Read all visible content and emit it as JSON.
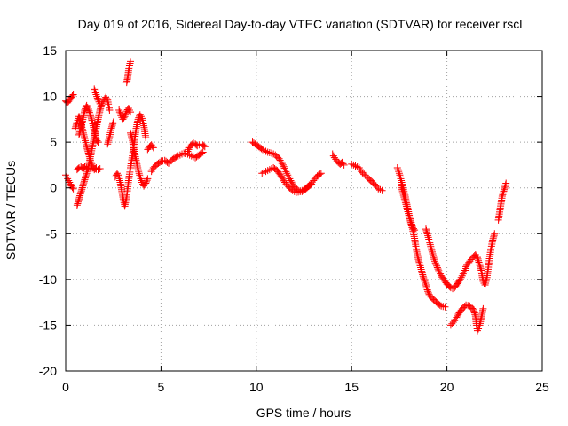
{
  "chart_data": {
    "type": "scatter",
    "title": "Day 019 of 2016, Sidereal Day-to-day VTEC variation (SDTVAR) for receiver rscl",
    "xlabel": "GPS time / hours",
    "ylabel": "SDTVAR / TECUs",
    "xlim": [
      0,
      25
    ],
    "ylim": [
      -20,
      15
    ],
    "x_ticks": [
      0,
      5,
      10,
      15,
      20,
      25
    ],
    "y_ticks": [
      -20,
      -15,
      -10,
      -5,
      0,
      5,
      10,
      15
    ],
    "x_tick_labels": [
      "0",
      "5",
      "10",
      "15",
      "20",
      "25"
    ],
    "y_tick_labels": [
      "-20",
      "-15",
      "-10",
      "-5",
      "0",
      "5",
      "10",
      "15"
    ],
    "grid": true,
    "marker": "plus",
    "series": [
      {
        "name": "SDTVAR",
        "color": "#ff0000",
        "tracks": [
          [
            [
              0.0,
              9.5
            ],
            [
              0.1,
              9.3
            ],
            [
              0.2,
              9.6
            ],
            [
              0.3,
              9.9
            ],
            [
              0.4,
              10.2
            ]
          ],
          [
            [
              0.0,
              1.4
            ],
            [
              0.1,
              1.0
            ],
            [
              0.2,
              0.6
            ],
            [
              0.3,
              0.2
            ],
            [
              0.4,
              -0.1
            ]
          ],
          [
            [
              0.5,
              6.5
            ],
            [
              0.6,
              7.2
            ],
            [
              0.7,
              7.8
            ],
            [
              0.8,
              7.0
            ],
            [
              0.9,
              6.2
            ],
            [
              1.0,
              5.4
            ],
            [
              1.1,
              4.5
            ],
            [
              1.2,
              3.8
            ],
            [
              1.3,
              3.0
            ],
            [
              1.4,
              2.4
            ],
            [
              1.5,
              2.0
            ],
            [
              1.6,
              2.2
            ]
          ],
          [
            [
              0.6,
              -1.9
            ],
            [
              0.7,
              -1.2
            ],
            [
              0.8,
              -0.5
            ],
            [
              0.9,
              0.2
            ],
            [
              1.0,
              0.9
            ],
            [
              1.1,
              1.6
            ],
            [
              1.2,
              2.4
            ],
            [
              1.3,
              3.4
            ],
            [
              1.4,
              4.5
            ],
            [
              1.5,
              5.5
            ],
            [
              1.6,
              6.5
            ],
            [
              1.7,
              7.5
            ],
            [
              1.8,
              8.5
            ],
            [
              1.9,
              9.2
            ],
            [
              2.0,
              9.6
            ],
            [
              2.1,
              9.9
            ],
            [
              2.2,
              9.6
            ],
            [
              2.3,
              8.5
            ]
          ],
          [
            [
              0.6,
              2.0
            ],
            [
              0.7,
              2.2
            ],
            [
              0.8,
              2.3
            ],
            [
              0.9,
              2.1
            ],
            [
              1.0,
              2.3
            ],
            [
              1.1,
              2.2
            ],
            [
              1.2,
              2.1
            ],
            [
              1.3,
              2.2
            ],
            [
              1.5,
              2.1
            ],
            [
              1.7,
              2.0
            ],
            [
              1.8,
              2.1
            ]
          ],
          [
            [
              0.7,
              5.8
            ],
            [
              0.8,
              6.5
            ],
            [
              0.9,
              7.5
            ],
            [
              1.0,
              8.5
            ],
            [
              1.1,
              9.0
            ],
            [
              1.2,
              8.6
            ],
            [
              1.3,
              7.9
            ],
            [
              1.4,
              7.2
            ],
            [
              1.5,
              6.2
            ],
            [
              1.6,
              5.3
            ],
            [
              1.7,
              5.0
            ]
          ],
          [
            [
              1.5,
              10.8
            ],
            [
              1.6,
              10.2
            ],
            [
              1.7,
              9.6
            ],
            [
              1.8,
              9.2
            ]
          ],
          [
            [
              2.2,
              4.8
            ],
            [
              2.3,
              5.6
            ],
            [
              2.4,
              6.5
            ],
            [
              2.5,
              7.2
            ]
          ],
          [
            [
              2.6,
              1.2
            ],
            [
              2.7,
              1.6
            ],
            [
              2.8,
              1.2
            ],
            [
              2.9,
              0.2
            ],
            [
              3.0,
              -1.0
            ],
            [
              3.1,
              -2.0
            ],
            [
              3.2,
              -1.0
            ],
            [
              3.3,
              0.8
            ],
            [
              3.4,
              2.2
            ],
            [
              3.5,
              3.5
            ],
            [
              3.6,
              5.0
            ],
            [
              3.7,
              6.5
            ],
            [
              3.8,
              7.5
            ],
            [
              3.9,
              8.0
            ],
            [
              4.0,
              7.6
            ],
            [
              4.1,
              6.8
            ],
            [
              4.2,
              5.5
            ]
          ],
          [
            [
              2.8,
              8.5
            ],
            [
              2.9,
              7.9
            ],
            [
              3.0,
              7.5
            ],
            [
              3.1,
              7.8
            ],
            [
              3.2,
              8.4
            ],
            [
              3.3,
              8.7
            ],
            [
              3.4,
              8.3
            ]
          ],
          [
            [
              3.2,
              11.5
            ],
            [
              3.25,
              12.0
            ],
            [
              3.3,
              12.8
            ],
            [
              3.35,
              13.4
            ],
            [
              3.4,
              13.8
            ]
          ],
          [
            [
              3.4,
              6.0
            ],
            [
              3.5,
              5.2
            ],
            [
              3.6,
              4.0
            ],
            [
              3.7,
              3.0
            ],
            [
              3.8,
              2.0
            ],
            [
              3.9,
              1.2
            ],
            [
              4.0,
              0.6
            ],
            [
              4.1,
              0.2
            ],
            [
              4.2,
              0.5
            ],
            [
              4.3,
              1.0
            ]
          ],
          [
            [
              4.3,
              4.2
            ],
            [
              4.4,
              4.5
            ],
            [
              4.5,
              4.7
            ],
            [
              4.6,
              4.4
            ]
          ],
          [
            [
              4.5,
              1.8
            ],
            [
              4.6,
              2.2
            ],
            [
              4.8,
              2.6
            ],
            [
              5.0,
              2.9
            ],
            [
              5.2,
              3.0
            ],
            [
              5.4,
              2.7
            ],
            [
              5.6,
              3.1
            ],
            [
              5.8,
              3.4
            ],
            [
              6.0,
              3.6
            ],
            [
              6.2,
              3.8
            ],
            [
              6.4,
              3.7
            ],
            [
              6.6,
              3.5
            ],
            [
              6.8,
              3.3
            ],
            [
              7.0,
              3.6
            ],
            [
              7.2,
              3.9
            ]
          ],
          [
            [
              6.4,
              4.0
            ],
            [
              6.5,
              4.4
            ],
            [
              6.6,
              4.7
            ],
            [
              6.7,
              4.9
            ],
            [
              6.8,
              4.8
            ],
            [
              6.9,
              4.6
            ],
            [
              7.0,
              4.7
            ],
            [
              7.1,
              4.8
            ],
            [
              7.2,
              4.7
            ],
            [
              7.3,
              4.5
            ]
          ],
          [
            [
              9.8,
              5.0
            ],
            [
              10.0,
              4.7
            ],
            [
              10.2,
              4.4
            ],
            [
              10.4,
              4.1
            ],
            [
              10.6,
              3.9
            ],
            [
              10.8,
              3.8
            ],
            [
              11.0,
              3.6
            ],
            [
              11.2,
              3.2
            ],
            [
              11.4,
              2.5
            ],
            [
              11.6,
              1.6
            ],
            [
              11.8,
              0.8
            ],
            [
              12.0,
              0.1
            ],
            [
              12.2,
              -0.3
            ],
            [
              12.4,
              -0.4
            ],
            [
              12.6,
              -0.1
            ],
            [
              12.8,
              0.3
            ],
            [
              13.0,
              0.8
            ],
            [
              13.2,
              1.3
            ],
            [
              13.4,
              1.6
            ]
          ],
          [
            [
              10.3,
              1.6
            ],
            [
              10.5,
              1.8
            ],
            [
              10.7,
              2.0
            ],
            [
              10.9,
              2.2
            ],
            [
              11.1,
              1.9
            ],
            [
              11.3,
              1.3
            ],
            [
              11.5,
              0.6
            ],
            [
              11.7,
              0.1
            ],
            [
              11.9,
              -0.3
            ],
            [
              12.1,
              -0.5
            ],
            [
              12.3,
              -0.4
            ],
            [
              12.5,
              -0.2
            ],
            [
              12.7,
              0.1
            ],
            [
              12.9,
              0.4
            ]
          ],
          [
            [
              14.0,
              3.7
            ],
            [
              14.1,
              3.3
            ],
            [
              14.3,
              2.8
            ],
            [
              14.4,
              2.6
            ],
            [
              14.5,
              2.8
            ],
            [
              14.6,
              2.5
            ]
          ],
          [
            [
              15.0,
              2.6
            ],
            [
              15.2,
              2.4
            ],
            [
              15.4,
              2.2
            ],
            [
              15.5,
              1.8
            ],
            [
              15.8,
              1.2
            ],
            [
              16.0,
              0.8
            ],
            [
              16.2,
              0.4
            ],
            [
              16.4,
              -0.1
            ],
            [
              16.6,
              -0.3
            ]
          ],
          [
            [
              17.4,
              2.2
            ],
            [
              17.5,
              1.6
            ],
            [
              17.6,
              0.8
            ],
            [
              17.7,
              0.0
            ],
            [
              17.8,
              -0.8
            ],
            [
              17.9,
              -1.8
            ],
            [
              18.0,
              -2.8
            ],
            [
              18.1,
              -3.8
            ],
            [
              18.2,
              -4.5
            ],
            [
              18.3,
              -5.5
            ],
            [
              18.4,
              -6.8
            ],
            [
              18.5,
              -7.8
            ],
            [
              18.6,
              -8.5
            ],
            [
              18.7,
              -9.3
            ],
            [
              18.8,
              -10.0
            ],
            [
              18.9,
              -10.6
            ],
            [
              19.0,
              -11.3
            ],
            [
              19.1,
              -11.8
            ],
            [
              19.3,
              -12.2
            ],
            [
              19.5,
              -12.6
            ],
            [
              19.7,
              -12.9
            ],
            [
              19.9,
              -13.0
            ]
          ],
          [
            [
              17.6,
              0.2
            ],
            [
              17.7,
              -0.6
            ],
            [
              17.8,
              -1.4
            ],
            [
              17.9,
              -2.2
            ],
            [
              18.0,
              -3.0
            ],
            [
              18.1,
              -3.6
            ],
            [
              18.2,
              -4.3
            ],
            [
              18.3,
              -4.6
            ]
          ],
          [
            [
              18.9,
              -4.5
            ],
            [
              19.0,
              -5.2
            ],
            [
              19.1,
              -6.0
            ],
            [
              19.2,
              -6.8
            ],
            [
              19.3,
              -7.6
            ],
            [
              19.4,
              -8.2
            ],
            [
              19.5,
              -8.7
            ],
            [
              19.6,
              -9.2
            ],
            [
              19.7,
              -9.6
            ],
            [
              19.8,
              -9.9
            ],
            [
              19.9,
              -10.2
            ],
            [
              20.0,
              -10.5
            ],
            [
              20.1,
              -10.7
            ],
            [
              20.2,
              -10.9
            ],
            [
              20.3,
              -11.0
            ],
            [
              20.4,
              -10.9
            ],
            [
              20.5,
              -10.6
            ],
            [
              20.6,
              -10.3
            ],
            [
              20.7,
              -10.0
            ],
            [
              20.8,
              -9.6
            ],
            [
              20.9,
              -9.2
            ],
            [
              21.0,
              -8.8
            ]
          ],
          [
            [
              20.2,
              -15.0
            ],
            [
              20.4,
              -14.5
            ],
            [
              20.6,
              -13.8
            ],
            [
              20.8,
              -13.2
            ],
            [
              21.0,
              -12.8
            ],
            [
              21.2,
              -12.9
            ],
            [
              21.4,
              -13.3
            ],
            [
              21.5,
              -14.0
            ],
            [
              21.55,
              -15.0
            ],
            [
              21.6,
              -15.6
            ],
            [
              21.7,
              -15.2
            ],
            [
              21.8,
              -14.2
            ],
            [
              21.9,
              -13.2
            ]
          ],
          [
            [
              21.0,
              -8.6
            ],
            [
              21.2,
              -8.0
            ],
            [
              21.4,
              -7.5
            ],
            [
              21.5,
              -7.3
            ],
            [
              21.6,
              -7.6
            ],
            [
              21.7,
              -8.3
            ],
            [
              21.8,
              -9.0
            ],
            [
              21.9,
              -10.2
            ],
            [
              22.0,
              -10.6
            ],
            [
              22.1,
              -9.8
            ],
            [
              22.2,
              -8.2
            ],
            [
              22.3,
              -6.8
            ],
            [
              22.4,
              -5.7
            ],
            [
              22.5,
              -5.0
            ]
          ],
          [
            [
              22.7,
              -3.5
            ],
            [
              22.8,
              -2.2
            ],
            [
              22.9,
              -0.9
            ],
            [
              23.0,
              -0.2
            ],
            [
              23.1,
              0.5
            ]
          ]
        ]
      }
    ]
  }
}
